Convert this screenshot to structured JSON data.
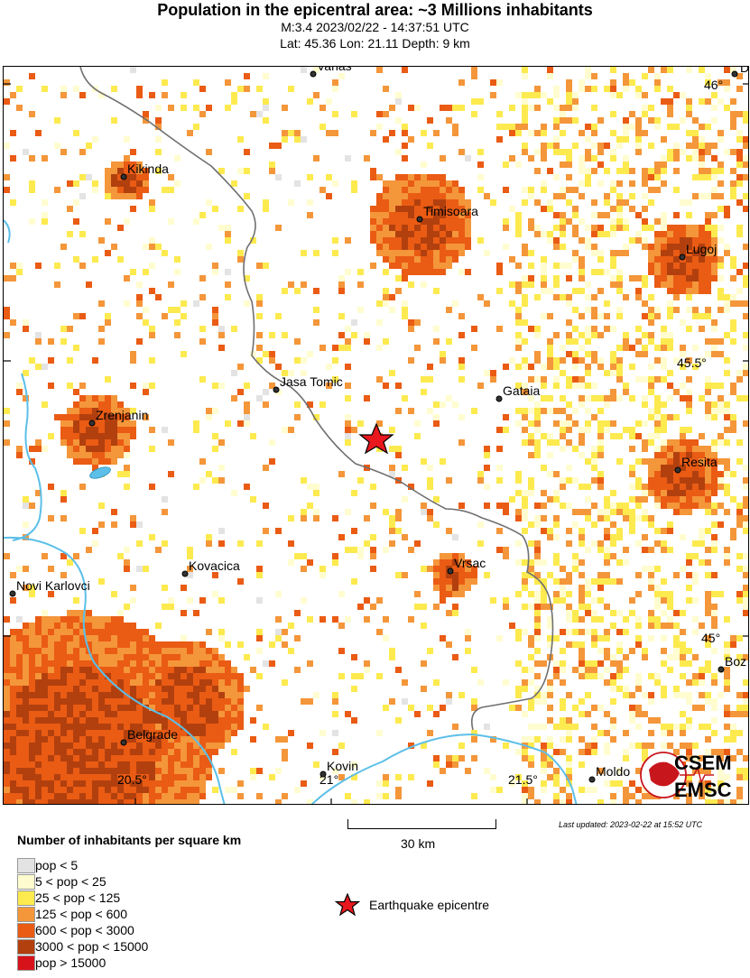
{
  "header": {
    "title": "Population in the epicentral area: ~3 Millions inhabitants",
    "line1": "M:3.4 2023/02/22 - 14:37:51 UTC",
    "line2": "Lat: 45.36 Lon: 21.11 Depth: 9 km"
  },
  "map": {
    "epicenter": {
      "lat": 45.36,
      "lon": 21.11
    },
    "graticule_labels": {
      "lat_46": "46°",
      "lat_45_5": "45.5°",
      "lat_45": "45°",
      "lon_20_5": "20.5°",
      "lon_21": "21°",
      "lon_21_5": "21.5°"
    },
    "cities": [
      {
        "name": "Vanas"
      },
      {
        "name": "D"
      },
      {
        "name": "Kikinda"
      },
      {
        "name": "Timisoara"
      },
      {
        "name": "Lugoj"
      },
      {
        "name": "Jasa Tomic"
      },
      {
        "name": "Gataia"
      },
      {
        "name": "Zrenjanin"
      },
      {
        "name": "Resita"
      },
      {
        "name": "Kovacica"
      },
      {
        "name": "Vrsac"
      },
      {
        "name": "Novi Karlovci"
      },
      {
        "name": "Boz"
      },
      {
        "name": "Belgrade"
      },
      {
        "name": "Kovin"
      },
      {
        "name": "Moldo"
      }
    ],
    "colors": {
      "river": "#5bbfe8",
      "border": "#707070",
      "epicenter": "#e8181e"
    }
  },
  "legend": {
    "title": "Number of inhabitants per square km",
    "items": [
      {
        "label": "pop < 5",
        "color": "#e3e3e3"
      },
      {
        "label": "5 < pop < 25",
        "color": "#fffdd0"
      },
      {
        "label": "25 < pop < 125",
        "color": "#fcea4f"
      },
      {
        "label": "125 < pop < 600",
        "color": "#f4963a"
      },
      {
        "label": "600 < pop < 3000",
        "color": "#ea5b14"
      },
      {
        "label": "3000 < pop < 15000",
        "color": "#b2400e"
      },
      {
        "label": "pop > 15000",
        "color": "#d8121b"
      }
    ],
    "epicentre_label": "Earthquake epicentre"
  },
  "scale": {
    "label": "30 km"
  },
  "footer": {
    "updated": "Last updated: 2023-02-22 at 15:52 UTC"
  },
  "logo": {
    "line1": "CSEM",
    "line2": "EMSC"
  }
}
